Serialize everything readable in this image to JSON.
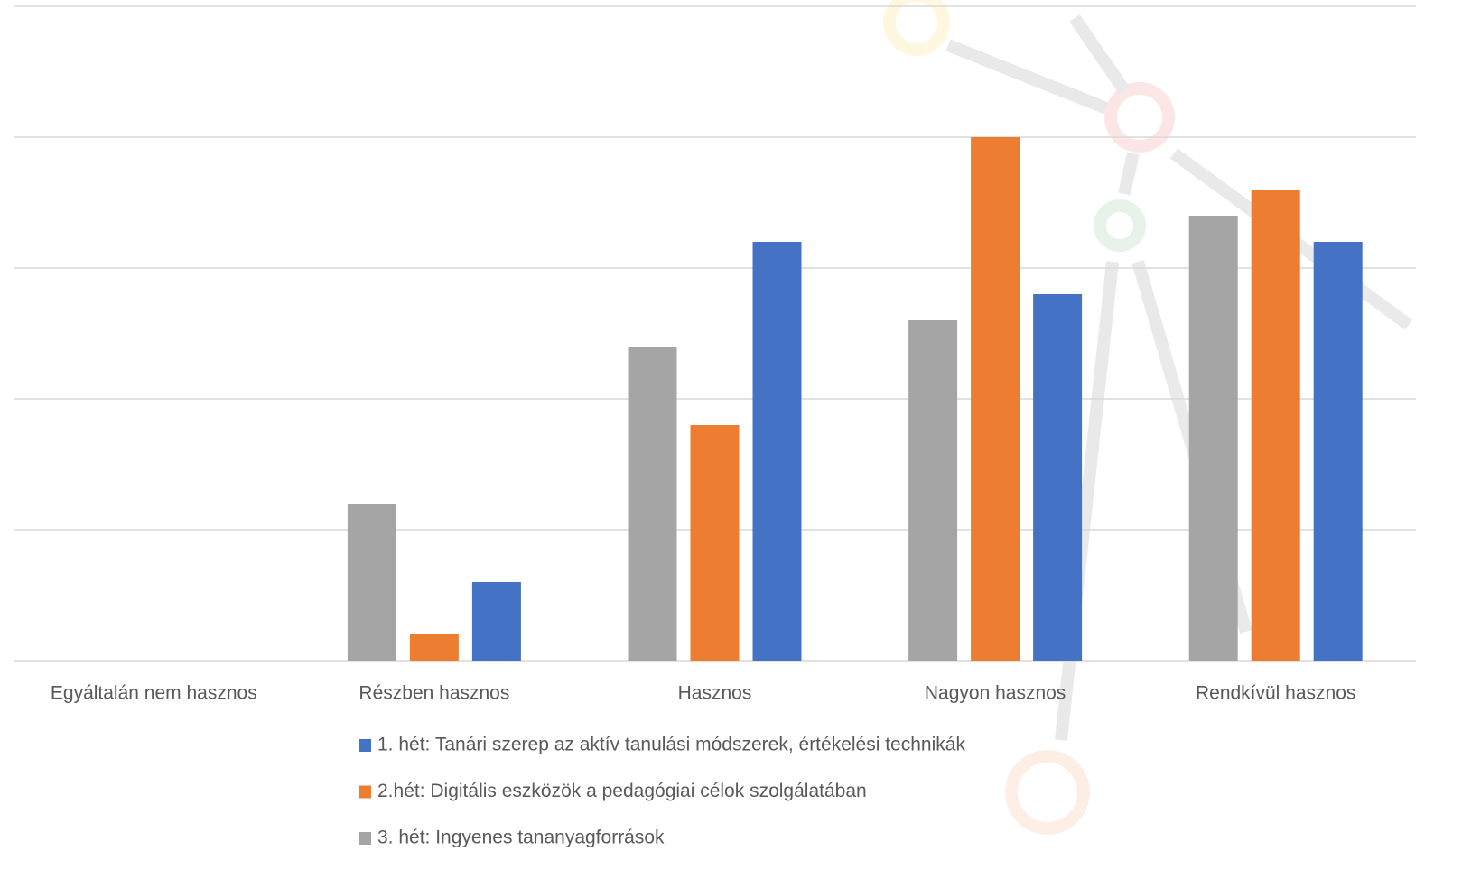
{
  "chart_data": {
    "type": "bar",
    "categories": [
      "Egyáltalán nem hasznos",
      "Részben hasznos",
      "Hasznos",
      "Nagyon hasznos",
      "Rendkívül hasznos"
    ],
    "series": [
      {
        "name": "1. hét: Tanári szerep az aktív tanulási módszerek, értékelési technikák",
        "color": "#4472c4",
        "values": [
          0,
          3,
          16,
          14,
          16
        ]
      },
      {
        "name": "2.hét: Digitális eszközök a pedagógiai célok szolgálatában",
        "color": "#ed7d31",
        "values": [
          0,
          1,
          9,
          20,
          18
        ]
      },
      {
        "name": "3. hét: Ingyenes tananyagforrások",
        "color": "#a5a5a5",
        "values": [
          0,
          6,
          12,
          13,
          17
        ]
      }
    ],
    "ylim": [
      0,
      25
    ],
    "yticks": [
      0,
      5,
      10,
      15,
      20,
      25
    ],
    "grid": true
  }
}
